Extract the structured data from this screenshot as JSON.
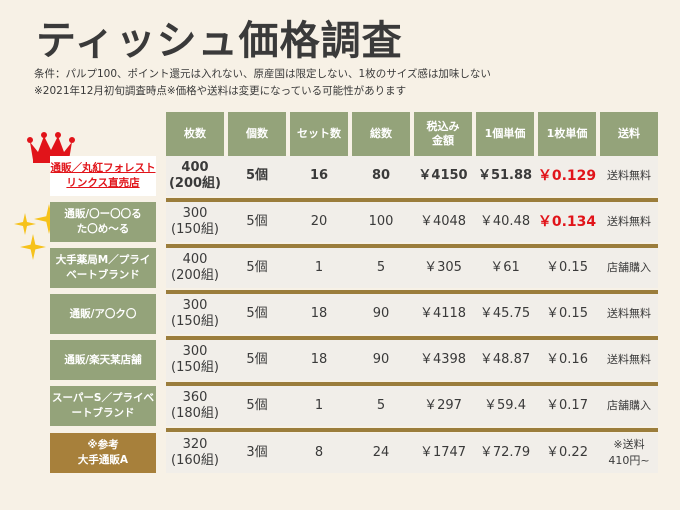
{
  "title": "ティッシュ価格調査",
  "notes": [
    "条件：パルプ100、ポイント還元は入れない、原産国は限定しない、1枚のサイズ感は加味しない",
    "※2021年12月初旬調査時点※価格や送料は変更になっている可能性があります"
  ],
  "headers": [
    "枚数",
    "個数",
    "セット数",
    "総数",
    "税込み\n金額",
    "1個単価",
    "1枚単価",
    "送料"
  ],
  "rows": [
    {
      "label": "通販／丸紅フォレスト\nリンクス直売店",
      "cells": [
        "400\n(200組)",
        "5個",
        "16",
        "80",
        "￥4150",
        "￥51.88",
        "￥0.129",
        "送料無料"
      ]
    },
    {
      "label": "通販/〇ー〇〇る\nた〇め～る",
      "cells": [
        "300\n(150組)",
        "5個",
        "20",
        "100",
        "￥4048",
        "￥40.48",
        "￥0.134",
        "送料無料"
      ]
    },
    {
      "label": "大手薬局M／プライ\nベートブランド",
      "cells": [
        "400\n(200組)",
        "5個",
        "1",
        "5",
        "￥305",
        "￥61",
        "￥0.15",
        "店舗購入"
      ]
    },
    {
      "label": "通販/ア〇ク〇",
      "cells": [
        "300\n(150組)",
        "5個",
        "18",
        "90",
        "￥4118",
        "￥45.75",
        "￥0.15",
        "送料無料"
      ]
    },
    {
      "label": "通販/楽天某店舗",
      "cells": [
        "300\n(150組)",
        "5個",
        "18",
        "90",
        "￥4398",
        "￥48.87",
        "￥0.16",
        "送料無料"
      ]
    },
    {
      "label": "スーパーS／プライベ\nートブランド",
      "cells": [
        "360\n(180組)",
        "5個",
        "1",
        "5",
        "￥297",
        "￥59.4",
        "￥0.17",
        "店舗購入"
      ]
    },
    {
      "label": "※参考\n大手通販A",
      "cells": [
        "320\n(160組)",
        "3個",
        "8",
        "24",
        "￥1747",
        "￥72.79",
        "￥0.22",
        "※送料\n410円~"
      ]
    }
  ],
  "colors": {
    "header": "#94a37a",
    "separator": "#9b7d3b",
    "highlight": "#e1141a",
    "reference": "#a7803b"
  },
  "icons": [
    "crown-icon",
    "sparkle-icon"
  ]
}
